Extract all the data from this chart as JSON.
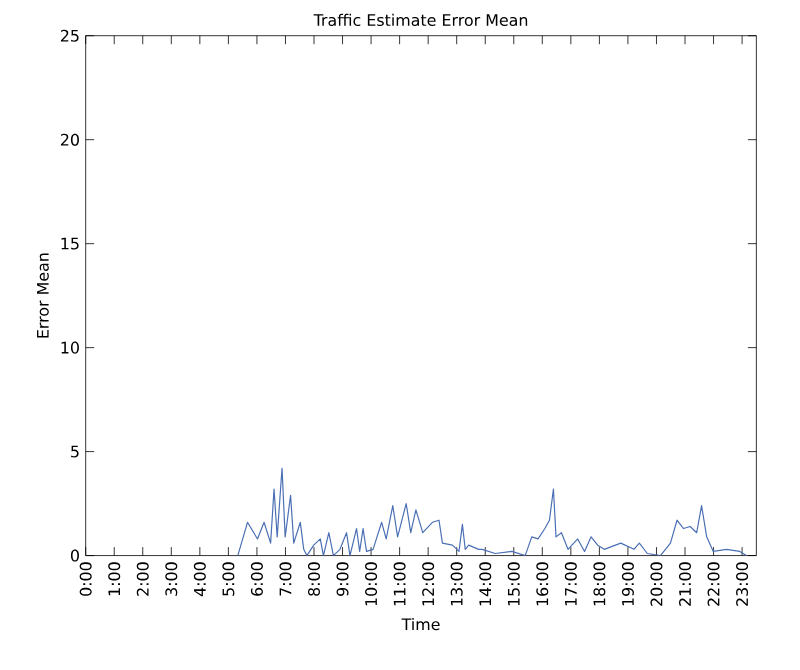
{
  "chart_data": {
    "type": "line",
    "title": "Traffic Estimate Error Mean",
    "xlabel": "Time",
    "ylabel": "Error Mean",
    "x": [
      5.33,
      5.67,
      6.02,
      6.25,
      6.48,
      6.6,
      6.71,
      6.88,
      6.99,
      7.18,
      7.29,
      7.52,
      7.64,
      7.75,
      7.99,
      8.22,
      8.33,
      8.52,
      8.68,
      8.91,
      9.14,
      9.26,
      9.49,
      9.6,
      9.72,
      9.84,
      10.07,
      10.37,
      10.53,
      10.76,
      10.93,
      11.23,
      11.39,
      11.57,
      11.81,
      12.15,
      12.38,
      12.5,
      12.85,
      13.08,
      13.2,
      13.3,
      13.42,
      13.77,
      13.89,
      14.35,
      14.93,
      15.4,
      15.63,
      15.85,
      16.09,
      16.25,
      16.39,
      16.48,
      16.67,
      16.9,
      17.24,
      17.48,
      17.71,
      17.94,
      18.17,
      18.75,
      19.21,
      19.4,
      19.68,
      20.14,
      20.49,
      20.72,
      20.95,
      21.18,
      21.41,
      21.58,
      21.76,
      21.99,
      22.45,
      22.92,
      23.15
    ],
    "series": [
      {
        "color": "#4a6fb5",
        "values": [
          0,
          1.6,
          0.8,
          1.6,
          0.6,
          3.2,
          0.9,
          4.2,
          0.9,
          2.9,
          0.6,
          1.6,
          0.3,
          0,
          0.5,
          0.8,
          0,
          1.1,
          0,
          0.3,
          1.1,
          0,
          1.3,
          0.2,
          1.3,
          0.2,
          0.3,
          1.6,
          0.8,
          2.4,
          0.9,
          2.5,
          1.1,
          2.2,
          1.1,
          1.6,
          1.7,
          0.6,
          0.5,
          0.2,
          1.5,
          0.3,
          0.5,
          0.3,
          0.3,
          0.1,
          0.2,
          0,
          0.9,
          0.8,
          1.3,
          1.7,
          3.2,
          0.9,
          1.1,
          0.3,
          0.8,
          0.2,
          0.9,
          0.5,
          0.3,
          0.6,
          0.3,
          0.6,
          0.1,
          0,
          0.6,
          1.7,
          1.3,
          1.4,
          1.1,
          2.4,
          0.9,
          0.2,
          0.3,
          0.2,
          0
        ]
      }
    ],
    "xlim": [
      0,
      23.5
    ],
    "ylim": [
      0,
      25
    ],
    "xticks": [
      {
        "value": 0,
        "label": "0:00"
      },
      {
        "value": 1,
        "label": "1:00"
      },
      {
        "value": 2,
        "label": "2:00"
      },
      {
        "value": 3,
        "label": "3:00"
      },
      {
        "value": 4,
        "label": "4:00"
      },
      {
        "value": 5,
        "label": "5:00"
      },
      {
        "value": 6,
        "label": "6:00"
      },
      {
        "value": 7,
        "label": "7:00"
      },
      {
        "value": 8,
        "label": "8:00"
      },
      {
        "value": 9,
        "label": "9:00"
      },
      {
        "value": 10,
        "label": "10:00"
      },
      {
        "value": 11,
        "label": "11:00"
      },
      {
        "value": 12,
        "label": "12:00"
      },
      {
        "value": 13,
        "label": "13:00"
      },
      {
        "value": 14,
        "label": "14:00"
      },
      {
        "value": 15,
        "label": "15:00"
      },
      {
        "value": 16,
        "label": "16:00"
      },
      {
        "value": 17,
        "label": "17:00"
      },
      {
        "value": 18,
        "label": "18:00"
      },
      {
        "value": 19,
        "label": "19:00"
      },
      {
        "value": 20,
        "label": "20:00"
      },
      {
        "value": 21,
        "label": "21:00"
      },
      {
        "value": 22,
        "label": "22:00"
      },
      {
        "value": 23,
        "label": "23:00"
      }
    ],
    "yticks": [
      0,
      5,
      10,
      15,
      20,
      25
    ],
    "grid": false
  }
}
